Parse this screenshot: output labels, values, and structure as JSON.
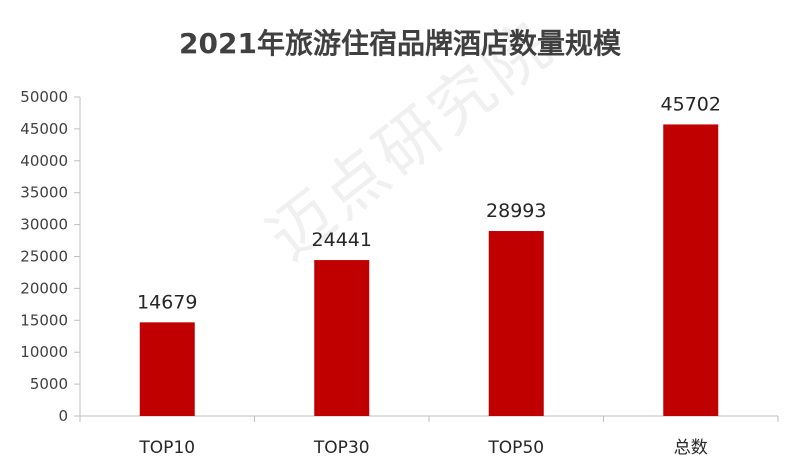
{
  "chart_data": {
    "type": "bar",
    "title": "2021年旅游住宿品牌酒店数量规模",
    "categories": [
      "TOP10",
      "TOP30",
      "TOP50",
      "总数"
    ],
    "values": [
      14679,
      24441,
      28993,
      45702
    ],
    "ylim": [
      0,
      50000
    ],
    "yticks": [
      0,
      5000,
      10000,
      15000,
      20000,
      25000,
      30000,
      35000,
      40000,
      45000,
      50000
    ],
    "xlabel": "",
    "ylabel": "",
    "grid": false,
    "legend": "none",
    "data_labels": true,
    "bar_color": "#c00000"
  },
  "watermark": "迈点研究院"
}
